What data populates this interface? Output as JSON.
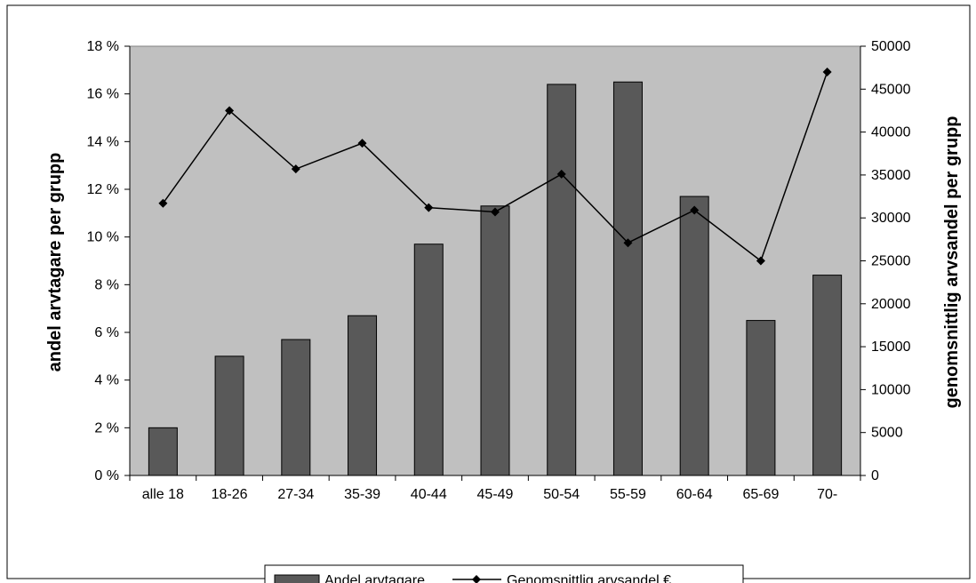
{
  "chart_data": {
    "type": "bar",
    "categories": [
      "alle 18",
      "18-26",
      "27-34",
      "35-39",
      "40-44",
      "45-49",
      "50-54",
      "55-59",
      "60-64",
      "65-69",
      "70-"
    ],
    "series": [
      {
        "name": "Andel arvtagare",
        "type": "bar",
        "axis": "left",
        "values": [
          2.0,
          5.0,
          5.7,
          6.7,
          9.7,
          11.3,
          16.4,
          16.5,
          11.7,
          6.5,
          8.4
        ]
      },
      {
        "name": "Genomsnittlig arvsandel €",
        "type": "line",
        "axis": "right",
        "values": [
          31700,
          42500,
          35700,
          38700,
          31200,
          30700,
          35100,
          27100,
          30900,
          25000,
          47000
        ]
      }
    ],
    "ylabel": "andel arvtagare per grupp",
    "y2label": "genomsnittlig arvsandel per grupp",
    "ylim": [
      0,
      18
    ],
    "y2lim": [
      0,
      50000
    ],
    "yticks": [
      "0 %",
      "2 %",
      "4 %",
      "6 %",
      "8 %",
      "10 %",
      "12 %",
      "14 %",
      "16 %",
      "18 %"
    ],
    "y2ticks": [
      "0",
      "5000",
      "10000",
      "15000",
      "20000",
      "25000",
      "30000",
      "35000",
      "40000",
      "45000",
      "50000"
    ],
    "legend_position": "bottom",
    "plot_background": "#c0c0c0",
    "bar_color": "#595959",
    "line_color": "#000000"
  }
}
